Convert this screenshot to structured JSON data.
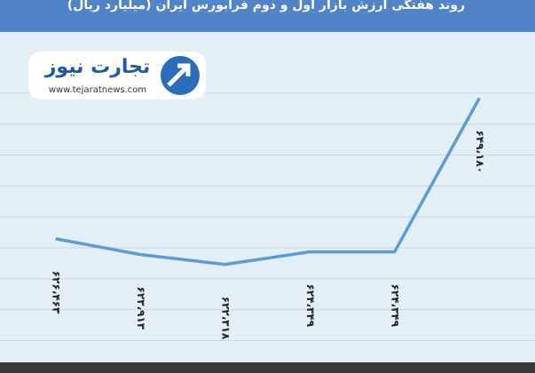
{
  "logo": {
    "name": "تجارت نیوز",
    "url": "www.tejaratnews.com"
  },
  "chart_data": {
    "type": "line",
    "title": "روند هفتگی ارزش بازار اول و دوم فرابورس ایران (میلیارد ریال)",
    "categories": [
      null,
      null,
      null,
      null,
      null,
      null
    ],
    "values": [
      626463,
      623913,
      622318,
      624349,
      624349,
      649180
    ],
    "value_labels": [
      "۶۲۶،۴۶۳",
      "۶۲۳،۹۱۳",
      "۶۲۲،۳۱۸",
      "۶۲۴،۳۴۹",
      "۶۲۴،۳۴۹",
      "۶۴۹،۱۸۰"
    ],
    "color": "#5b9bd5",
    "ylim": [
      606200,
      659600
    ],
    "yticks": [
      610000,
      615000,
      620000,
      625000,
      630000,
      635000,
      640000,
      645000,
      650000
    ],
    "grid": true
  }
}
